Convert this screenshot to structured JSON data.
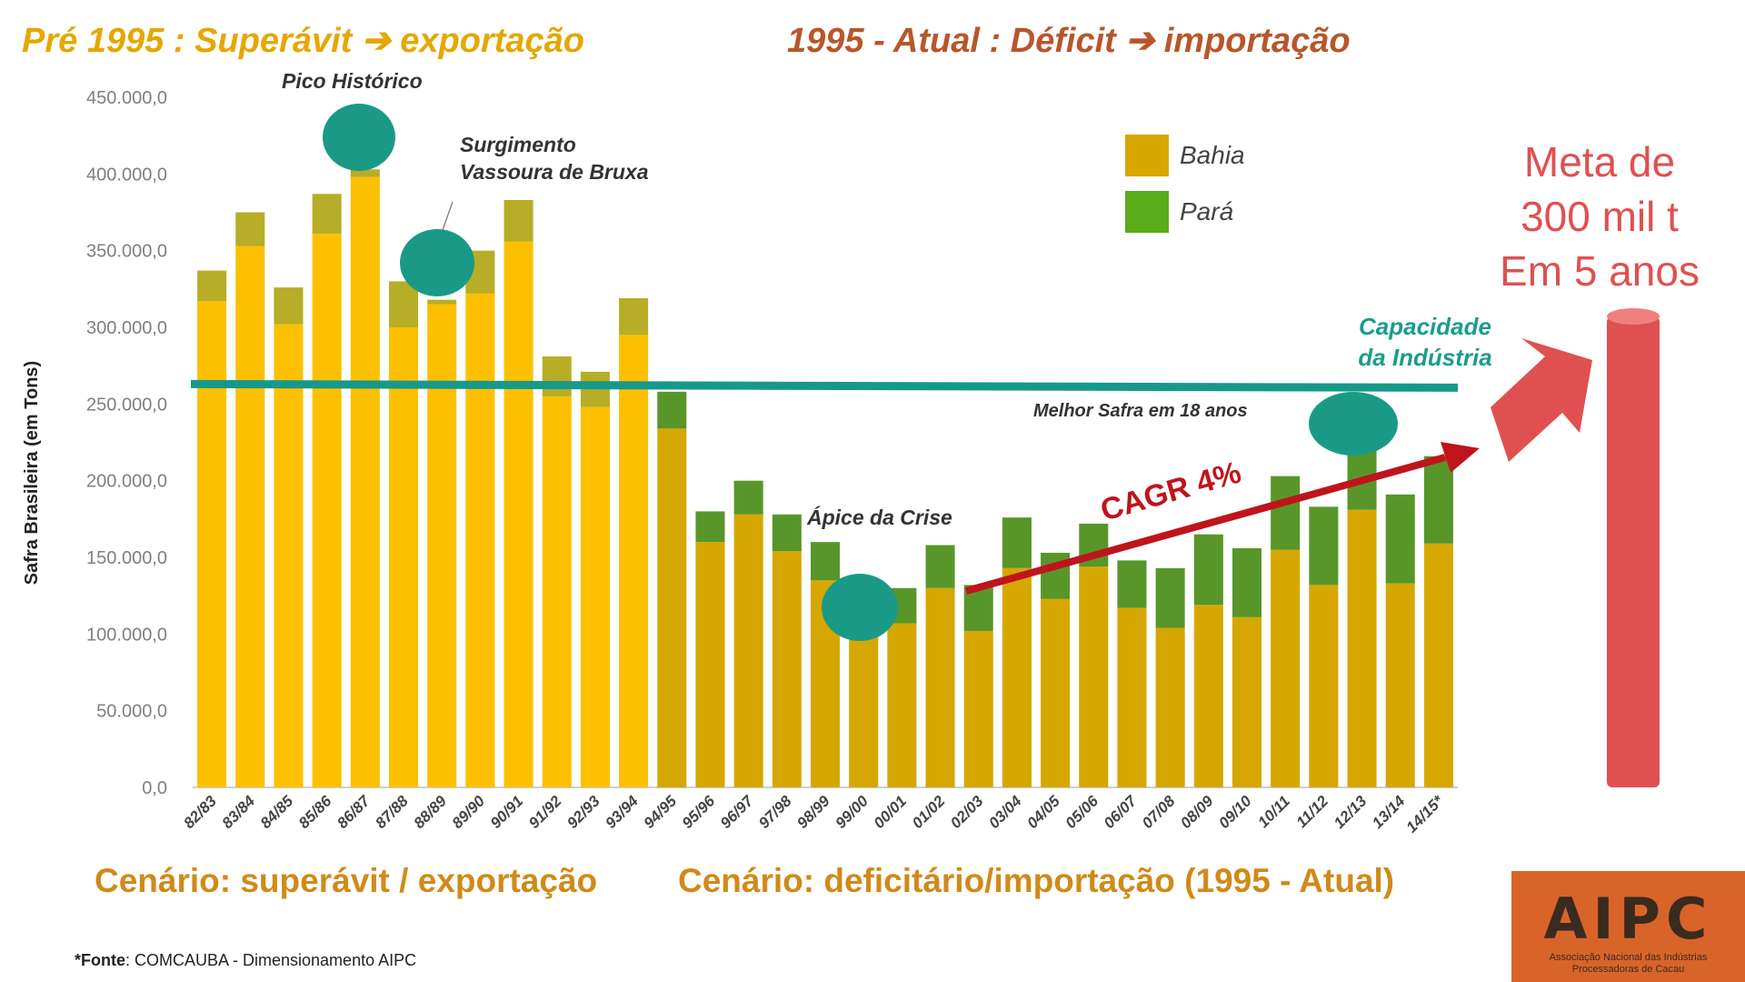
{
  "header": {
    "left": "Pré 1995 : Superávit ➔ exportação",
    "right": "1995 - Atual : Déficit ➔ importação"
  },
  "annotations": {
    "pico": "Pico Histórico",
    "vassoura_1": "Surgimento",
    "vassoura_2": "Vassoura de Bruxa",
    "apice": "Ápice da Crise",
    "melhor": "Melhor Safra em 18 anos",
    "cagr": "CAGR 4%",
    "capacidade_1": "Capacidade",
    "capacidade_2": "da Indústria"
  },
  "meta": {
    "line1": "Meta de",
    "line2": "300 mil t",
    "line3": "Em 5 anos"
  },
  "scenarios": {
    "left": "Cenário: superávit / exportação",
    "right": "Cenário: deficitário/importação  (1995 - Atual)"
  },
  "source": {
    "label": "*Fonte",
    "text": ": COMCAUBA - Dimensionamento AIPC"
  },
  "logo": {
    "name": "AIPC",
    "sub1": "Associação Nacional das Indústrias",
    "sub2": "Processadoras de Cacau"
  },
  "chart_data": {
    "type": "bar",
    "stacked": true,
    "ylabel": "Safra Brasileira (em Tons)",
    "ylim": [
      0,
      450000
    ],
    "yticks": [
      "0,0",
      "50.000,0",
      "100.000,0",
      "150.000,0",
      "200.000,0",
      "250.000,0",
      "300.000,0",
      "350.000,0",
      "400.000,0",
      "450.000,0"
    ],
    "categories": [
      "82/83",
      "83/84",
      "84/85",
      "85/86",
      "86/87",
      "87/88",
      "88/89",
      "89/90",
      "90/91",
      "91/92",
      "92/93",
      "93/94",
      "94/95",
      "95/96",
      "96/97",
      "97/98",
      "98/99",
      "99/00",
      "00/01",
      "01/02",
      "02/03",
      "03/04",
      "04/05",
      "05/06",
      "06/07",
      "07/08",
      "08/09",
      "09/10",
      "10/11",
      "11/12",
      "12/13",
      "13/14",
      "14/15*"
    ],
    "series": [
      {
        "name": "Bahia",
        "values": [
          317000,
          353000,
          302000,
          361000,
          398000,
          300000,
          315000,
          322000,
          356000,
          255000,
          248000,
          295000,
          234000,
          160000,
          178000,
          154000,
          135000,
          105000,
          107000,
          130000,
          102000,
          143000,
          123000,
          144000,
          117000,
          104000,
          119000,
          111000,
          155000,
          132000,
          181000,
          133000,
          159000
        ]
      },
      {
        "name": "Pará",
        "values": [
          20000,
          22000,
          24000,
          26000,
          5000,
          30000,
          3000,
          28000,
          27000,
          26000,
          23000,
          24000,
          24000,
          20000,
          22000,
          24000,
          25000,
          24000,
          23000,
          28000,
          30000,
          33000,
          30000,
          28000,
          31000,
          39000,
          46000,
          45000,
          48000,
          51000,
          44000,
          58000,
          57000
        ]
      }
    ],
    "capacity_value": 263000,
    "legend": [
      "Bahia",
      "Pará"
    ],
    "legend_position": "top-right",
    "colors": {
      "bahia_pre": "#fdc000",
      "para_pre": "#b7ad27",
      "bahia_post": "#d6a700",
      "para_post": "#58962a",
      "legend_bahia": "#d6a700",
      "legend_para": "#5aac18",
      "capacity_line": "#16998a",
      "circles": "#1a9a86",
      "arrow": "#c0141c",
      "meta_bar": "#e05050",
      "axis_text": "#7f7f7f"
    }
  }
}
